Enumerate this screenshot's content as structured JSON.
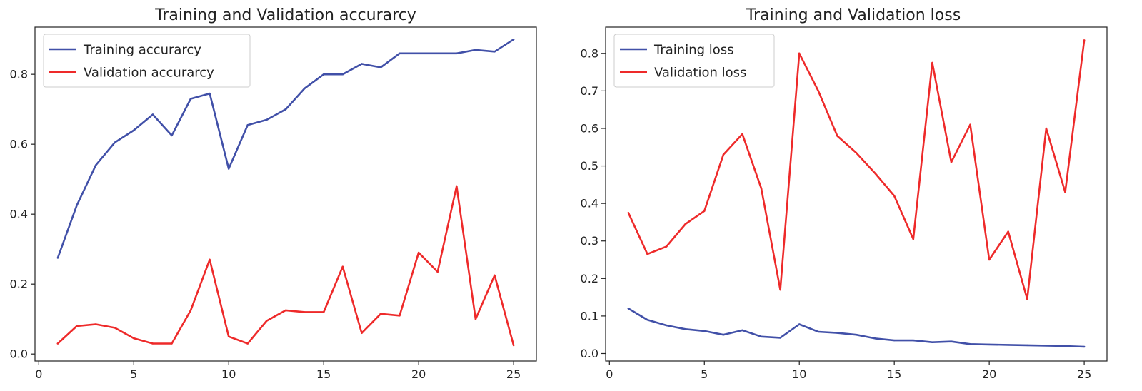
{
  "chart_data": [
    {
      "type": "line",
      "title": "Training and Validation accurarcy",
      "xlabel": "",
      "ylabel": "",
      "xlim": [
        -0.2,
        26.2
      ],
      "ylim": [
        -0.02,
        0.935
      ],
      "xticks": [
        0,
        5,
        10,
        15,
        20,
        25
      ],
      "yticks": [
        0.0,
        0.2,
        0.4,
        0.6,
        0.8
      ],
      "ytick_labels": [
        "0.0",
        "0.2",
        "0.4",
        "0.6",
        "0.8"
      ],
      "legend_position": "top-left",
      "x": [
        1,
        2,
        3,
        4,
        5,
        6,
        7,
        8,
        9,
        10,
        11,
        12,
        13,
        14,
        15,
        16,
        17,
        18,
        19,
        20,
        21,
        22,
        23,
        24,
        25
      ],
      "series": [
        {
          "name": "Training accurarcy",
          "color": "#4150a8",
          "values": [
            0.275,
            0.425,
            0.54,
            0.605,
            0.64,
            0.685,
            0.625,
            0.73,
            0.745,
            0.53,
            0.655,
            0.67,
            0.7,
            0.76,
            0.8,
            0.8,
            0.83,
            0.82,
            0.86,
            0.86,
            0.86,
            0.86,
            0.87,
            0.865,
            0.9
          ]
        },
        {
          "name": "Validation accurarcy",
          "color": "#ee2a2a",
          "values": [
            0.03,
            0.08,
            0.085,
            0.075,
            0.045,
            0.03,
            0.03,
            0.125,
            0.27,
            0.05,
            0.03,
            0.095,
            0.125,
            0.12,
            0.12,
            0.25,
            0.06,
            0.115,
            0.11,
            0.29,
            0.235,
            0.48,
            0.1,
            0.225,
            0.025
          ]
        }
      ]
    },
    {
      "type": "line",
      "title": "Training and Validation loss",
      "xlabel": "",
      "ylabel": "",
      "xlim": [
        -0.2,
        26.2
      ],
      "ylim": [
        -0.02,
        0.87
      ],
      "xticks": [
        0,
        5,
        10,
        15,
        20,
        25
      ],
      "yticks": [
        0.0,
        0.1,
        0.2,
        0.3,
        0.4,
        0.5,
        0.6,
        0.7,
        0.8
      ],
      "ytick_labels": [
        "0.0",
        "0.1",
        "0.2",
        "0.3",
        "0.4",
        "0.5",
        "0.6",
        "0.7",
        "0.8"
      ],
      "legend_position": "top-left",
      "x": [
        1,
        2,
        3,
        4,
        5,
        6,
        7,
        8,
        9,
        10,
        11,
        12,
        13,
        14,
        15,
        16,
        17,
        18,
        19,
        20,
        21,
        22,
        23,
        24,
        25
      ],
      "series": [
        {
          "name": "Training loss",
          "color": "#4150a8",
          "values": [
            0.12,
            0.09,
            0.075,
            0.065,
            0.06,
            0.05,
            0.062,
            0.045,
            0.042,
            0.078,
            0.058,
            0.055,
            0.05,
            0.04,
            0.035,
            0.035,
            0.03,
            0.032,
            0.025,
            0.024,
            0.023,
            0.022,
            0.021,
            0.02,
            0.018
          ]
        },
        {
          "name": "Validation loss",
          "color": "#ee2a2a",
          "values": [
            0.375,
            0.265,
            0.285,
            0.345,
            0.38,
            0.53,
            0.585,
            0.44,
            0.17,
            0.8,
            0.7,
            0.58,
            0.535,
            0.48,
            0.42,
            0.305,
            0.775,
            0.51,
            0.61,
            0.25,
            0.325,
            0.145,
            0.6,
            0.43,
            0.835
          ]
        }
      ]
    }
  ]
}
